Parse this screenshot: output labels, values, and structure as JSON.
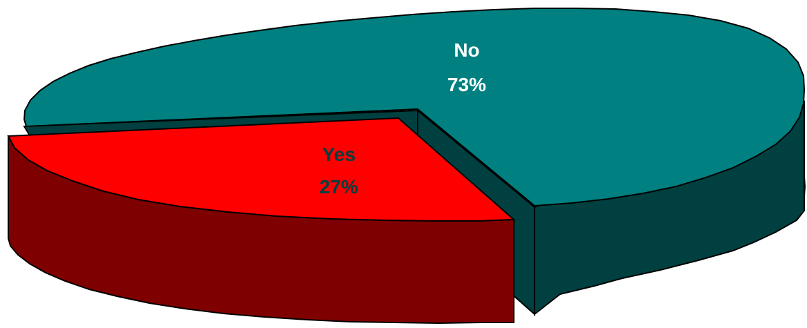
{
  "chart_data": {
    "type": "pie",
    "style": "3d-exploded",
    "slices": [
      {
        "label": "No",
        "value": 73,
        "value_label": "73%",
        "color": "#008080",
        "side_color": "#004040"
      },
      {
        "label": "Yes",
        "value": 27,
        "value_label": "27%",
        "color": "#FF0000",
        "side_color": "#7F0000"
      }
    ]
  }
}
